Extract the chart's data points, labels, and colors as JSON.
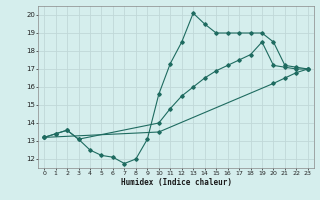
{
  "xlabel": "Humidex (Indice chaleur)",
  "bg_color": "#d5eeed",
  "grid_color": "#c0d8d8",
  "line_color": "#1e6b60",
  "xlim": [
    -0.5,
    23.5
  ],
  "ylim": [
    11.5,
    20.5
  ],
  "xticks": [
    0,
    1,
    2,
    3,
    4,
    5,
    6,
    7,
    8,
    9,
    10,
    11,
    12,
    13,
    14,
    15,
    16,
    17,
    18,
    19,
    20,
    21,
    22,
    23
  ],
  "yticks": [
    12,
    13,
    14,
    15,
    16,
    17,
    18,
    19,
    20
  ],
  "line1_x": [
    0,
    1,
    2,
    3,
    4,
    5,
    6,
    7,
    8,
    9,
    10,
    11,
    12,
    13,
    14,
    15,
    16,
    17,
    18,
    19,
    20,
    21,
    22,
    23
  ],
  "line1_y": [
    13.2,
    13.4,
    13.6,
    13.1,
    12.5,
    12.2,
    12.1,
    11.75,
    12.0,
    13.1,
    15.6,
    17.3,
    18.5,
    20.1,
    19.5,
    19.0,
    19.0,
    19.0,
    19.0,
    19.0,
    18.5,
    17.2,
    17.1,
    17.0
  ],
  "line2_x": [
    0,
    1,
    2,
    3,
    10,
    11,
    12,
    13,
    14,
    15,
    16,
    17,
    18,
    19,
    20,
    21,
    22,
    23
  ],
  "line2_y": [
    13.2,
    13.4,
    13.6,
    13.1,
    14.0,
    14.8,
    15.5,
    16.0,
    16.5,
    16.9,
    17.2,
    17.5,
    17.8,
    18.5,
    17.2,
    17.1,
    17.0,
    17.0
  ],
  "line3_x": [
    0,
    10,
    20,
    21,
    22,
    23
  ],
  "line3_y": [
    13.2,
    13.5,
    16.2,
    16.5,
    16.8,
    17.0
  ]
}
